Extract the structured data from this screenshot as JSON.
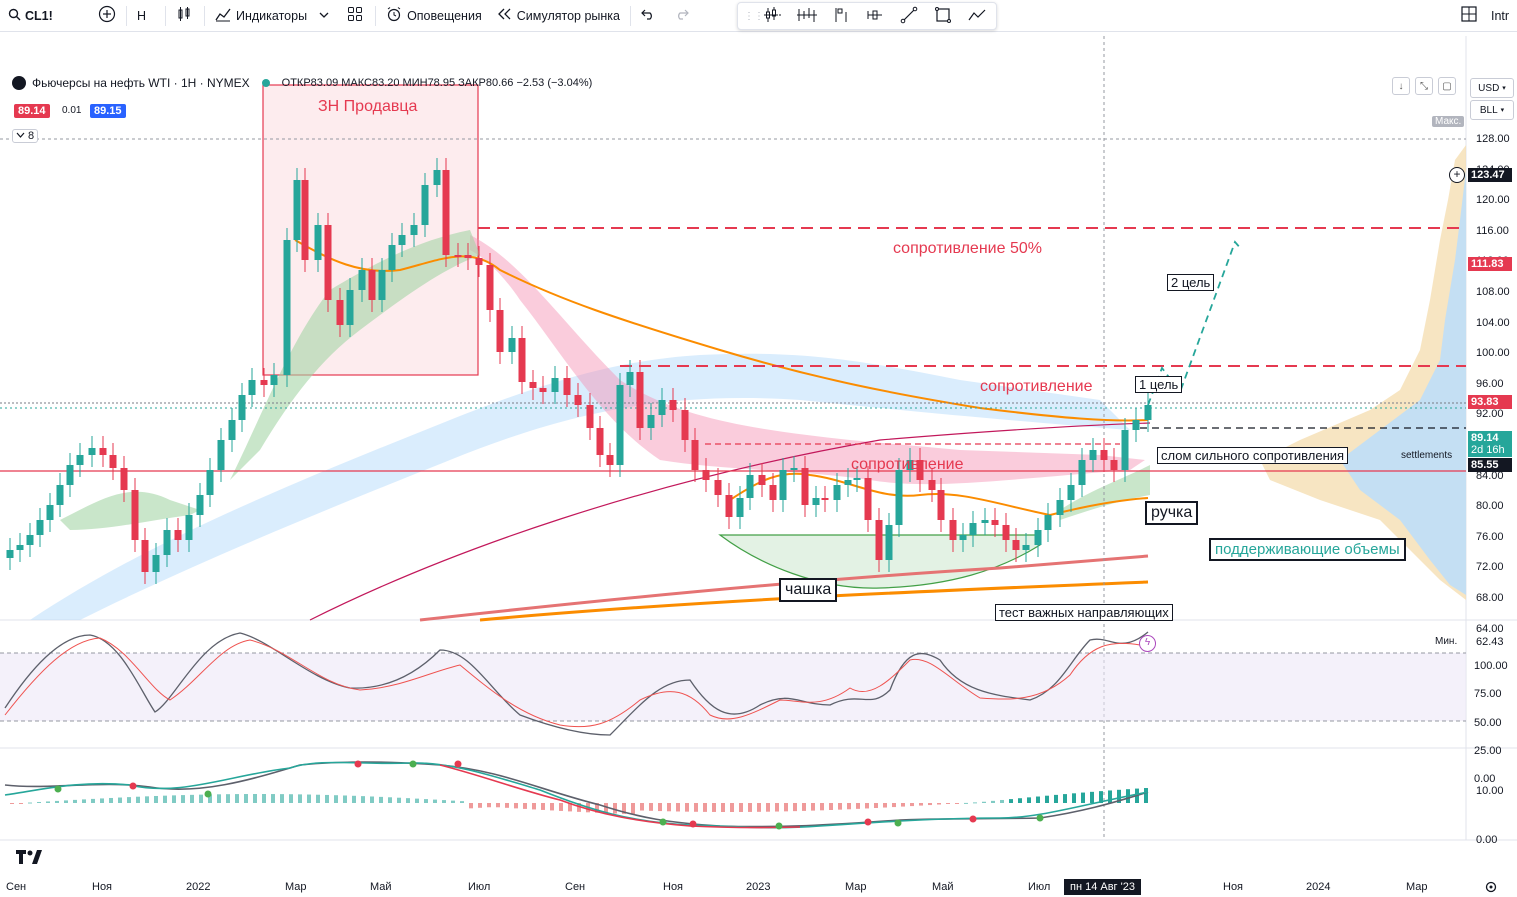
{
  "toolbar": {
    "symbol": "CL1!",
    "interval": "Н",
    "indicators_label": "Индикаторы",
    "alerts_label": "Оповещения",
    "replay_label": "Симулятор рынка",
    "right_label": "Intr"
  },
  "legend": {
    "title": "Фьючерсы на нефть WTI · 1Н · NYMEX",
    "ohlc": "ОТКР83.09 МАКС83.20 МИН78.95 ЗАКР80.66 −2.53 (−3.04%)",
    "bid": "89.14",
    "spread": "0.01",
    "ask": "89.15",
    "indicators_count": "8"
  },
  "currency": {
    "usd": "USD",
    "unit": "BLL"
  },
  "price_axis": {
    "labels": [
      "128.00",
      "124.00",
      "120.00",
      "116.00",
      "112.00",
      "108.00",
      "104.00",
      "100.00",
      "96.00",
      "92.00",
      "88.00",
      "84.00",
      "80.00",
      "76.00",
      "72.00",
      "68.00",
      "64.00"
    ],
    "max_label": "Макс.",
    "min_label": "Мин.",
    "min_value": "62.43",
    "crosshair_price": "123.47",
    "current_price": "89.14",
    "countdown": "2d 16h",
    "tag_111": "111.83",
    "tag_93": "93.83",
    "tag_85": "85.55",
    "settlements_label": "settlements"
  },
  "osc_axis": {
    "labels": [
      "100.00",
      "75.00",
      "50.00",
      "25.00",
      "0.00"
    ]
  },
  "macd_axis": {
    "labels": [
      "10.00",
      "0.00"
    ]
  },
  "time_axis": {
    "labels": [
      "Сен",
      "Ноя",
      "2022",
      "Мар",
      "Май",
      "Июл",
      "Сен",
      "Ноя",
      "2023",
      "Мар",
      "Май",
      "Июл",
      "Ноя",
      "2024",
      "Мар"
    ],
    "crosshair_date": "пн 14 Авг '23"
  },
  "annotations": {
    "seller_zone": "ЗН Продавца",
    "resistance_50": "сопротивление 50%",
    "resistance_1": "сопротивление",
    "resistance_2": "сопротивление",
    "target_2": "2 цель",
    "target_1": "1 цель",
    "breakout": "слом сильного сопротивления",
    "handle": "ручка",
    "support_volumes": "поддерживающие объемы",
    "cup": "чашка",
    "ma_test": "тест важных направляющих"
  },
  "chart_data": {
    "type": "candlestick",
    "symbol": "CL1!",
    "interval": "1H",
    "y_range": [
      62.43,
      131
    ],
    "series": [
      {
        "name": "OHLC",
        "last_close": 89.14
      }
    ],
    "levels": [
      111.83,
      93.83,
      85.55,
      80.0
    ],
    "oscillator_range": [
      0,
      100
    ],
    "oscillator_bands": [
      25,
      75
    ]
  }
}
